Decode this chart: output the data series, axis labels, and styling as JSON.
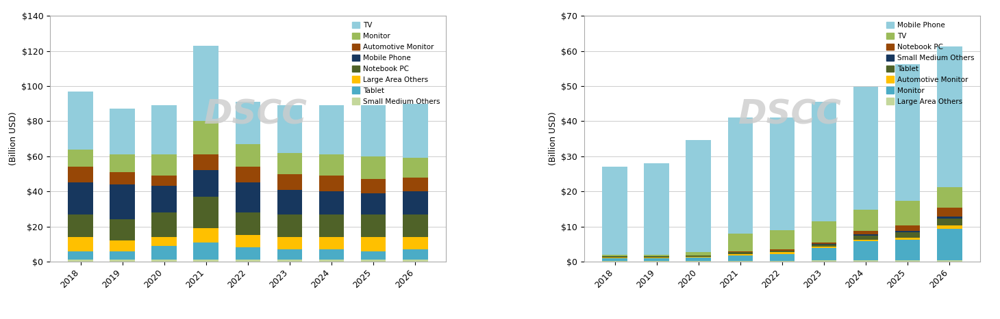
{
  "years": [
    "2018",
    "2019",
    "2020",
    "2021",
    "2022",
    "2023",
    "2024",
    "2025",
    "2026"
  ],
  "chart1": {
    "ylabel": "(Billion USD)",
    "ylim": [
      0,
      140
    ],
    "yticks": [
      0,
      20,
      40,
      60,
      80,
      100,
      120,
      140
    ],
    "ytick_labels": [
      "$0",
      "$20",
      "$40",
      "$60",
      "$80",
      "$100",
      "$120",
      "$140"
    ],
    "watermark": "DSCC",
    "legend_order": [
      "TV",
      "Monitor",
      "Automotive Monitor",
      "Mobile Phone",
      "Notebook PC",
      "Large Area Others",
      "Tablet",
      "Small Medium Others"
    ],
    "series_order": [
      "Small Medium Others",
      "Tablet",
      "Large Area Others",
      "Notebook PC",
      "Mobile Phone",
      "Automotive Monitor",
      "Monitor",
      "TV"
    ],
    "series": {
      "Small Medium Others": [
        1,
        1,
        1,
        1,
        1,
        1,
        1,
        1,
        1
      ],
      "Tablet": [
        5,
        5,
        8,
        10,
        7,
        6,
        6,
        5,
        6
      ],
      "Large Area Others": [
        8,
        6,
        5,
        8,
        7,
        7,
        7,
        8,
        7
      ],
      "Notebook PC": [
        13,
        12,
        14,
        18,
        13,
        13,
        13,
        13,
        13
      ],
      "Mobile Phone": [
        18,
        20,
        15,
        15,
        17,
        14,
        13,
        12,
        13
      ],
      "Automotive Monitor": [
        9,
        7,
        6,
        9,
        9,
        9,
        9,
        8,
        8
      ],
      "Monitor": [
        10,
        10,
        12,
        19,
        13,
        12,
        12,
        13,
        11
      ],
      "TV": [
        33,
        26,
        28,
        43,
        24,
        27,
        28,
        29,
        31
      ]
    },
    "colors": {
      "TV": "#92CDDC",
      "Monitor": "#9BBB59",
      "Automotive Monitor": "#974706",
      "Mobile Phone": "#17375E",
      "Notebook PC": "#4F6228",
      "Large Area Others": "#FFC000",
      "Tablet": "#4BACC6",
      "Small Medium Others": "#C4D79B"
    }
  },
  "chart2": {
    "ylabel": "(Billion USD)",
    "ylim": [
      0,
      70
    ],
    "yticks": [
      0,
      10,
      20,
      30,
      40,
      50,
      60,
      70
    ],
    "ytick_labels": [
      "$0",
      "$10",
      "$20",
      "$30",
      "$40",
      "$50",
      "$60",
      "$70"
    ],
    "watermark": "DSCC",
    "legend_order": [
      "Mobile Phone",
      "TV",
      "Notebook PC",
      "Small Medium Others",
      "Tablet",
      "Automotive Monitor",
      "Monitor",
      "Large Area Others"
    ],
    "series_order": [
      "Large Area Others",
      "Monitor",
      "Automotive Monitor",
      "Tablet",
      "Small Medium Others",
      "Notebook PC",
      "TV",
      "Mobile Phone"
    ],
    "series": {
      "Large Area Others": [
        0.2,
        0.2,
        0.2,
        0.2,
        0.2,
        0.3,
        0.3,
        0.3,
        0.3
      ],
      "Monitor": [
        0.8,
        0.8,
        1.0,
        1.5,
        2.0,
        3.5,
        5.5,
        6.0,
        9.0
      ],
      "Automotive Monitor": [
        0.2,
        0.2,
        0.2,
        0.5,
        0.5,
        0.5,
        0.5,
        0.5,
        1.0
      ],
      "Tablet": [
        0.3,
        0.3,
        0.3,
        0.5,
        0.5,
        0.5,
        1.0,
        1.5,
        2.0
      ],
      "Small Medium Others": [
        0.0,
        0.0,
        0.0,
        0.0,
        0.0,
        0.2,
        0.5,
        0.5,
        0.5
      ],
      "Notebook PC": [
        0.0,
        0.0,
        0.0,
        0.3,
        0.3,
        0.5,
        1.0,
        1.5,
        2.5
      ],
      "TV": [
        0.5,
        0.5,
        1.0,
        5.0,
        5.5,
        6.0,
        6.0,
        7.0,
        6.0
      ],
      "Mobile Phone": [
        25,
        26,
        32,
        33,
        32,
        34,
        35,
        39,
        40
      ]
    },
    "colors": {
      "Mobile Phone": "#92CDDC",
      "TV": "#9BBB59",
      "Notebook PC": "#974706",
      "Small Medium Others": "#17375E",
      "Tablet": "#4F6228",
      "Automotive Monitor": "#FFC000",
      "Monitor": "#4BACC6",
      "Large Area Others": "#C4D79B"
    }
  }
}
